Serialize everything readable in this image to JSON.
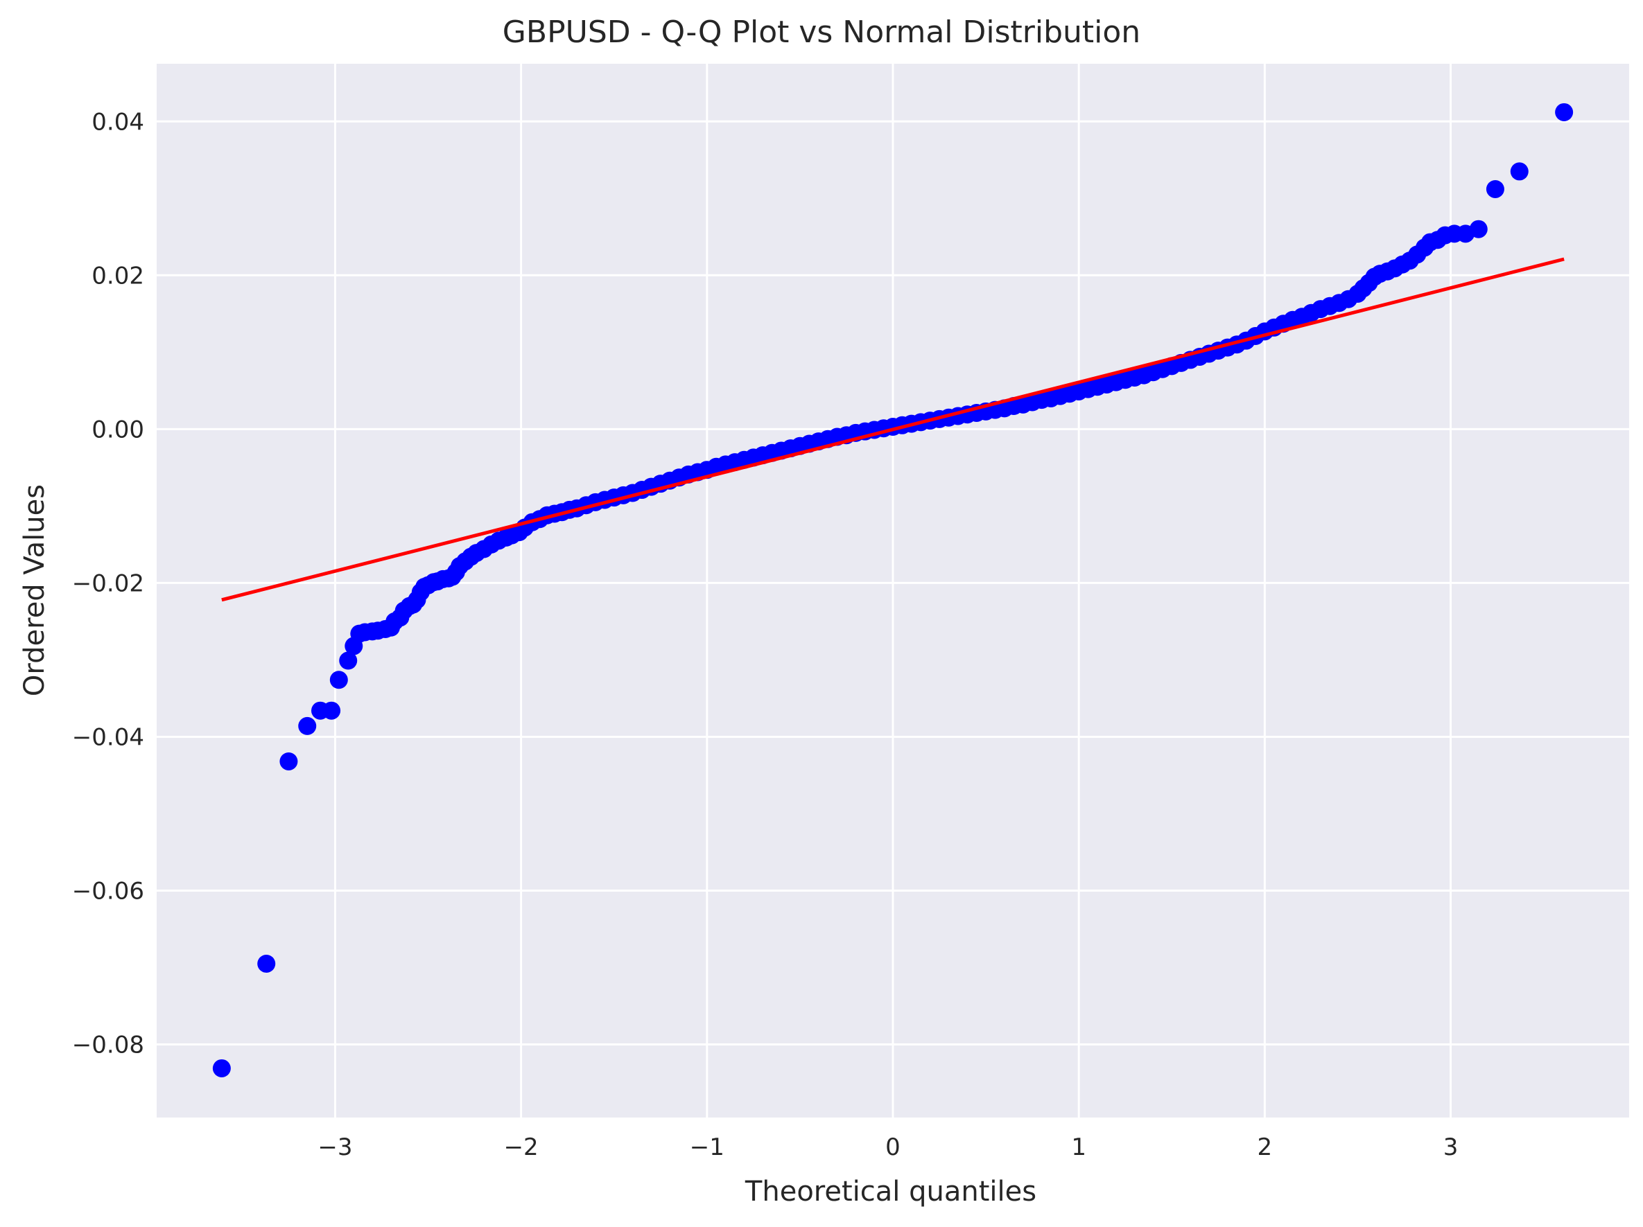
{
  "chart_data": {
    "type": "scatter",
    "title": "GBPUSD - Q-Q Plot vs Normal Distribution",
    "xlabel": "Theoretical quantiles",
    "ylabel": "Ordered Values",
    "xlim": [
      -3.96,
      3.96
    ],
    "ylim": [
      -0.0895,
      0.0475
    ],
    "xticks": [
      -3,
      -2,
      -1,
      0,
      1,
      2,
      3
    ],
    "xtick_labels": [
      "−3",
      "−2",
      "−1",
      "0",
      "1",
      "2",
      "3"
    ],
    "yticks": [
      0.04,
      0.02,
      0.0,
      -0.02,
      -0.04,
      -0.06,
      -0.08
    ],
    "ytick_labels": [
      "0.04",
      "0.02",
      "0.00",
      "−0.02",
      "−0.04",
      "−0.06",
      "−0.08"
    ],
    "grid": true,
    "background": "#eaeaf2",
    "grid_color": "#ffffff",
    "series": [
      {
        "marker_color": "#0000ff",
        "points": [
          [
            -3.61,
            -0.0831
          ],
          [
            -3.37,
            -0.0695
          ],
          [
            -3.25,
            -0.0432
          ],
          [
            -3.15,
            -0.0386
          ],
          [
            -3.08,
            -0.0366
          ],
          [
            -3.02,
            -0.0366
          ],
          [
            -2.98,
            -0.0326
          ],
          [
            -2.93,
            -0.0301
          ],
          [
            -2.9,
            -0.0282
          ],
          [
            -2.87,
            -0.0266
          ],
          [
            -2.84,
            -0.0264
          ],
          [
            -2.8,
            -0.0263
          ],
          [
            -2.77,
            -0.0262
          ],
          [
            -2.73,
            -0.026
          ],
          [
            -2.7,
            -0.0258
          ],
          [
            -2.68,
            -0.025
          ],
          [
            -2.65,
            -0.0245
          ],
          [
            -2.63,
            -0.0236
          ],
          [
            -2.6,
            -0.023
          ],
          [
            -2.58,
            -0.0228
          ],
          [
            -2.56,
            -0.0222
          ],
          [
            -2.54,
            -0.0212
          ],
          [
            -2.52,
            -0.0205
          ],
          [
            -2.5,
            -0.0203
          ],
          [
            -2.47,
            -0.0199
          ],
          [
            -2.45,
            -0.0198
          ],
          [
            -2.42,
            -0.0195
          ],
          [
            -2.39,
            -0.0194
          ],
          [
            -2.37,
            -0.0192
          ],
          [
            -2.35,
            -0.0186
          ],
          [
            -2.33,
            -0.0178
          ],
          [
            -2.3,
            -0.0172
          ],
          [
            -2.27,
            -0.0166
          ],
          [
            -2.24,
            -0.0161
          ],
          [
            -2.2,
            -0.0156
          ],
          [
            -2.16,
            -0.015
          ],
          [
            -2.12,
            -0.0145
          ],
          [
            -2.08,
            -0.0141
          ],
          [
            -2.05,
            -0.0138
          ],
          [
            -2.01,
            -0.0134
          ],
          [
            -1.98,
            -0.0128
          ],
          [
            -1.94,
            -0.0121
          ],
          [
            -1.9,
            -0.0117
          ],
          [
            -1.86,
            -0.0112
          ],
          [
            -1.82,
            -0.011
          ],
          [
            -1.78,
            -0.0108
          ],
          [
            -1.74,
            -0.0105
          ],
          [
            -1.7,
            -0.0103
          ],
          [
            -1.65,
            -0.0099
          ],
          [
            -1.6,
            -0.0095
          ],
          [
            -1.55,
            -0.0092
          ],
          [
            -1.5,
            -0.0089
          ],
          [
            -1.45,
            -0.0086
          ],
          [
            -1.4,
            -0.0083
          ],
          [
            -1.35,
            -0.0079
          ],
          [
            -1.3,
            -0.0075
          ],
          [
            -1.25,
            -0.0071
          ],
          [
            -1.2,
            -0.0067
          ],
          [
            -1.15,
            -0.0063
          ],
          [
            -1.1,
            -0.0059
          ],
          [
            -1.05,
            -0.0056
          ],
          [
            -1.0,
            -0.0053
          ],
          [
            -0.95,
            -0.0049
          ],
          [
            -0.9,
            -0.0046
          ],
          [
            -0.85,
            -0.0043
          ],
          [
            -0.8,
            -0.004
          ],
          [
            -0.75,
            -0.0037
          ],
          [
            -0.7,
            -0.0034
          ],
          [
            -0.65,
            -0.0031
          ],
          [
            -0.6,
            -0.0028
          ],
          [
            -0.55,
            -0.0025
          ],
          [
            -0.5,
            -0.0022
          ],
          [
            -0.45,
            -0.0019
          ],
          [
            -0.4,
            -0.0016
          ],
          [
            -0.35,
            -0.0013
          ],
          [
            -0.3,
            -0.001
          ],
          [
            -0.25,
            -0.0008
          ],
          [
            -0.2,
            -0.0005
          ],
          [
            -0.15,
            -0.0003
          ],
          [
            -0.1,
            -0.0001
          ],
          [
            -0.05,
            0.0001
          ],
          [
            0.0,
            0.0003
          ],
          [
            0.05,
            0.0005
          ],
          [
            0.1,
            0.0007
          ],
          [
            0.15,
            0.0009
          ],
          [
            0.2,
            0.0011
          ],
          [
            0.25,
            0.0013
          ],
          [
            0.3,
            0.0015
          ],
          [
            0.35,
            0.0017
          ],
          [
            0.4,
            0.0019
          ],
          [
            0.45,
            0.0021
          ],
          [
            0.5,
            0.0023
          ],
          [
            0.55,
            0.0025
          ],
          [
            0.6,
            0.0027
          ],
          [
            0.65,
            0.003
          ],
          [
            0.7,
            0.0032
          ],
          [
            0.75,
            0.0035
          ],
          [
            0.8,
            0.0038
          ],
          [
            0.85,
            0.004
          ],
          [
            0.9,
            0.0043
          ],
          [
            0.95,
            0.0046
          ],
          [
            1.0,
            0.0049
          ],
          [
            1.05,
            0.0052
          ],
          [
            1.1,
            0.0055
          ],
          [
            1.15,
            0.0058
          ],
          [
            1.2,
            0.0061
          ],
          [
            1.25,
            0.0064
          ],
          [
            1.3,
            0.0067
          ],
          [
            1.35,
            0.007
          ],
          [
            1.4,
            0.0074
          ],
          [
            1.45,
            0.0078
          ],
          [
            1.5,
            0.0082
          ],
          [
            1.55,
            0.0086
          ],
          [
            1.6,
            0.009
          ],
          [
            1.65,
            0.0094
          ],
          [
            1.7,
            0.0098
          ],
          [
            1.75,
            0.0102
          ],
          [
            1.8,
            0.0106
          ],
          [
            1.85,
            0.011
          ],
          [
            1.9,
            0.0115
          ],
          [
            1.95,
            0.0121
          ],
          [
            2.0,
            0.0127
          ],
          [
            2.05,
            0.0132
          ],
          [
            2.1,
            0.0137
          ],
          [
            2.15,
            0.0142
          ],
          [
            2.2,
            0.0146
          ],
          [
            2.25,
            0.0151
          ],
          [
            2.3,
            0.0156
          ],
          [
            2.35,
            0.016
          ],
          [
            2.4,
            0.0164
          ],
          [
            2.45,
            0.0169
          ],
          [
            2.5,
            0.0176
          ],
          [
            2.53,
            0.0183
          ],
          [
            2.56,
            0.019
          ],
          [
            2.59,
            0.0198
          ],
          [
            2.62,
            0.0202
          ],
          [
            2.66,
            0.0205
          ],
          [
            2.7,
            0.0209
          ],
          [
            2.74,
            0.0214
          ],
          [
            2.78,
            0.0219
          ],
          [
            2.82,
            0.0227
          ],
          [
            2.86,
            0.0236
          ],
          [
            2.89,
            0.0243
          ],
          [
            2.93,
            0.0246
          ],
          [
            2.97,
            0.0252
          ],
          [
            3.02,
            0.0254
          ],
          [
            3.08,
            0.0254
          ],
          [
            3.15,
            0.026
          ],
          [
            3.24,
            0.0312
          ],
          [
            3.37,
            0.0335
          ],
          [
            3.61,
            0.0412
          ]
        ]
      },
      {
        "line_color": "#ff0000",
        "line": [
          [
            -3.61,
            -0.0222
          ],
          [
            3.61,
            0.0221
          ]
        ]
      }
    ]
  }
}
